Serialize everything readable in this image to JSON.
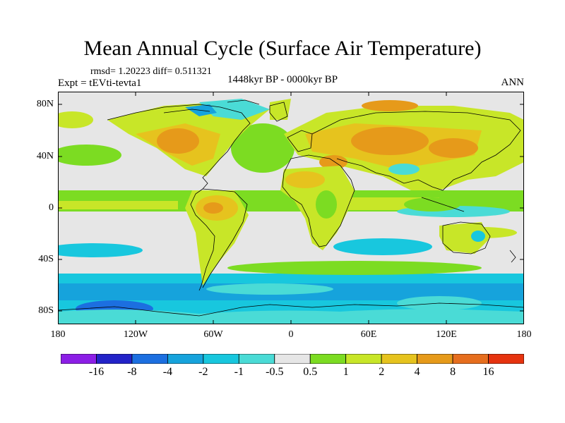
{
  "title": "Mean Annual Cycle (Surface Air Temperature)",
  "stats_line": "rmsd= 1.20223 diff= 0.511321",
  "experiment": "Expt = tEVti-tevta1",
  "period": "1448kyr BP - 0000kyr BP",
  "season": "ANN",
  "lat_labels": [
    "80N",
    "40N",
    "0",
    "40S",
    "80S"
  ],
  "lon_labels": [
    "180",
    "120W",
    "60W",
    "0",
    "60E",
    "120E",
    "180"
  ],
  "colorbar": {
    "colors": [
      "#8c1ee6",
      "#2323c8",
      "#1c6fe0",
      "#16a3dc",
      "#18c7de",
      "#4adbd6",
      "#e6e6e6",
      "#7cdc22",
      "#c8e628",
      "#e6c31e",
      "#e69a1a",
      "#e66e1e",
      "#e6330f"
    ],
    "tick_labels": [
      "-16",
      "-8",
      "-4",
      "-2",
      "-1",
      "-0.5",
      "0.5",
      "1",
      "2",
      "4",
      "8",
      "16"
    ]
  },
  "colors": {
    "ocean_bg": "#e6e6e6",
    "coast": "#000000"
  }
}
